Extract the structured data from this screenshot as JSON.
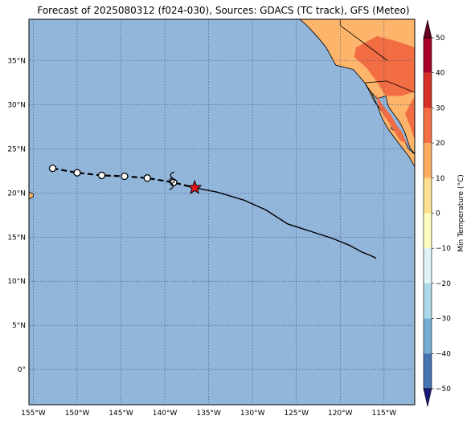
{
  "title": "Forecast of 2025080312 (f024-030), Sources: GDACS (TC track), GFS (Meteo)",
  "colors": {
    "ocean": "#92b5da",
    "track_past": "#000000",
    "track_forecast": "#000000",
    "current_marker": "#e41a1c",
    "land_warm": "#fdb56b",
    "land_hot": "#f26d43",
    "coast": "#000000",
    "grid": "#3a4a7a"
  },
  "map": {
    "lon_range": [
      -155.5,
      -111.5
    ],
    "lat_range": [
      -4.0,
      39.7
    ],
    "lon_ticks": [
      {
        "value": -155,
        "label": "155°W"
      },
      {
        "value": -150,
        "label": "150°W"
      },
      {
        "value": -145,
        "label": "145°W"
      },
      {
        "value": -140,
        "label": "140°W"
      },
      {
        "value": -135,
        "label": "135°W"
      },
      {
        "value": -130,
        "label": "130°W"
      },
      {
        "value": -125,
        "label": "125°W"
      },
      {
        "value": -120,
        "label": "120°W"
      },
      {
        "value": -115,
        "label": "115°W"
      }
    ],
    "lat_ticks": [
      {
        "value": 0,
        "label": "0°"
      },
      {
        "value": 5,
        "label": "5°N"
      },
      {
        "value": 10,
        "label": "10°N"
      },
      {
        "value": 15,
        "label": "15°N"
      },
      {
        "value": 20,
        "label": "20°N"
      },
      {
        "value": 25,
        "label": "25°N"
      },
      {
        "value": 30,
        "label": "30°N"
      },
      {
        "value": 35,
        "label": "35°N"
      }
    ],
    "past_track": [
      {
        "lon": -152.8,
        "lat": 22.8
      },
      {
        "lon": -150.0,
        "lat": 22.3
      },
      {
        "lon": -147.2,
        "lat": 22.0
      },
      {
        "lon": -144.6,
        "lat": 21.9
      },
      {
        "lon": -142.0,
        "lat": 21.7
      },
      {
        "lon": -139.0,
        "lat": 21.2
      }
    ],
    "current_position": {
      "lon": -136.6,
      "lat": 20.6
    },
    "cyclone_symbol_position": {
      "lon": -139.2,
      "lat": 21.4
    },
    "forecast_track": [
      {
        "lon": -136.6,
        "lat": 20.6
      },
      {
        "lon": -134.0,
        "lat": 20.1
      },
      {
        "lon": -131.0,
        "lat": 19.2
      },
      {
        "lon": -128.5,
        "lat": 18.1
      },
      {
        "lon": -126.0,
        "lat": 16.5
      },
      {
        "lon": -123.5,
        "lat": 15.7
      },
      {
        "lon": -121.0,
        "lat": 14.9
      },
      {
        "lon": -119.0,
        "lat": 14.1
      },
      {
        "lon": -117.5,
        "lat": 13.3
      },
      {
        "lon": -116.5,
        "lat": 12.9
      },
      {
        "lon": -115.9,
        "lat": 12.6
      }
    ],
    "land_regions": [
      {
        "name": "north-america-west",
        "fill": "land_warm",
        "points": [
          [
            -124.6,
            39.7
          ],
          [
            -111.5,
            39.7
          ],
          [
            -111.5,
            24.5
          ],
          [
            -112.0,
            25.0
          ],
          [
            -112.6,
            26.8
          ],
          [
            -113.2,
            28.0
          ],
          [
            -114.5,
            29.8
          ],
          [
            -114.8,
            31.0
          ],
          [
            -115.8,
            30.7
          ],
          [
            -116.8,
            31.8
          ],
          [
            -117.2,
            32.5
          ],
          [
            -118.5,
            34.0
          ],
          [
            -120.5,
            34.5
          ],
          [
            -121.6,
            36.5
          ],
          [
            -122.5,
            37.6
          ],
          [
            -123.8,
            39.0
          ]
        ]
      },
      {
        "name": "baja-california",
        "fill": "land_warm",
        "points": [
          [
            -117.2,
            32.5
          ],
          [
            -116.8,
            31.8
          ],
          [
            -116.1,
            30.4
          ],
          [
            -115.2,
            29.2
          ],
          [
            -114.0,
            28.0
          ],
          [
            -114.2,
            27.3
          ],
          [
            -113.0,
            26.6
          ],
          [
            -112.2,
            25.0
          ],
          [
            -111.5,
            24.4
          ],
          [
            -111.5,
            23.0
          ],
          [
            -112.2,
            24.2
          ],
          [
            -113.3,
            25.6
          ],
          [
            -114.5,
            27.2
          ],
          [
            -115.2,
            28.4
          ],
          [
            -115.8,
            30.0
          ],
          [
            -116.4,
            31.3
          ]
        ]
      },
      {
        "name": "hawaii-east",
        "fill": "land_warm",
        "points": [
          [
            -155.5,
            19.3
          ],
          [
            -155.0,
            19.6
          ],
          [
            -155.0,
            19.9
          ],
          [
            -155.5,
            20.1
          ]
        ]
      }
    ],
    "hot_regions": [
      {
        "name": "mojave-sonoran",
        "points": [
          [
            -118.2,
            36.5
          ],
          [
            -115.8,
            37.8
          ],
          [
            -113.5,
            37.2
          ],
          [
            -111.5,
            36.5
          ],
          [
            -111.5,
            31.5
          ],
          [
            -113.0,
            31.0
          ],
          [
            -114.8,
            31.0
          ],
          [
            -115.8,
            32.6
          ],
          [
            -117.0,
            34.2
          ],
          [
            -118.4,
            35.4
          ]
        ]
      },
      {
        "name": "baja-interior",
        "points": [
          [
            -115.9,
            31.2
          ],
          [
            -115.2,
            30.0
          ],
          [
            -114.2,
            28.8
          ],
          [
            -113.5,
            27.6
          ],
          [
            -112.9,
            26.8
          ],
          [
            -112.4,
            25.6
          ],
          [
            -113.2,
            26.0
          ],
          [
            -114.2,
            27.6
          ],
          [
            -115.0,
            28.8
          ],
          [
            -115.7,
            30.0
          ]
        ]
      },
      {
        "name": "sonora-coast",
        "points": [
          [
            -111.5,
            31.0
          ],
          [
            -111.5,
            26.0
          ],
          [
            -112.0,
            27.5
          ],
          [
            -112.6,
            29.0
          ]
        ]
      }
    ],
    "borders": [
      {
        "name": "us-mexico",
        "points": [
          [
            -117.1,
            32.5
          ],
          [
            -114.7,
            32.7
          ],
          [
            -111.5,
            31.4
          ]
        ]
      },
      {
        "name": "ca-nv",
        "points": [
          [
            -120.0,
            39.7
          ],
          [
            -120.0,
            39.0
          ],
          [
            -114.6,
            35.0
          ]
        ]
      }
    ]
  },
  "colorbar": {
    "label": "Min Temperature (°C)",
    "ticks": [
      50,
      40,
      30,
      20,
      10,
      0,
      -10,
      -20,
      -30,
      -40,
      -50
    ],
    "bins": [
      {
        "from": 40,
        "to": 50,
        "color": "#a50026"
      },
      {
        "from": 30,
        "to": 40,
        "color": "#d73027"
      },
      {
        "from": 20,
        "to": 30,
        "color": "#f46d43"
      },
      {
        "from": 10,
        "to": 20,
        "color": "#fdae61"
      },
      {
        "from": 0,
        "to": 10,
        "color": "#fee090"
      },
      {
        "from": -10,
        "to": 0,
        "color": "#ffffbf"
      },
      {
        "from": -20,
        "to": -10,
        "color": "#e0f3f8"
      },
      {
        "from": -30,
        "to": -20,
        "color": "#abd9e9"
      },
      {
        "from": -40,
        "to": -30,
        "color": "#74add1"
      },
      {
        "from": -50,
        "to": -40,
        "color": "#4575b4"
      }
    ],
    "extend_top_color": "#67001f",
    "extend_bottom_color": "#1a1a7a"
  }
}
